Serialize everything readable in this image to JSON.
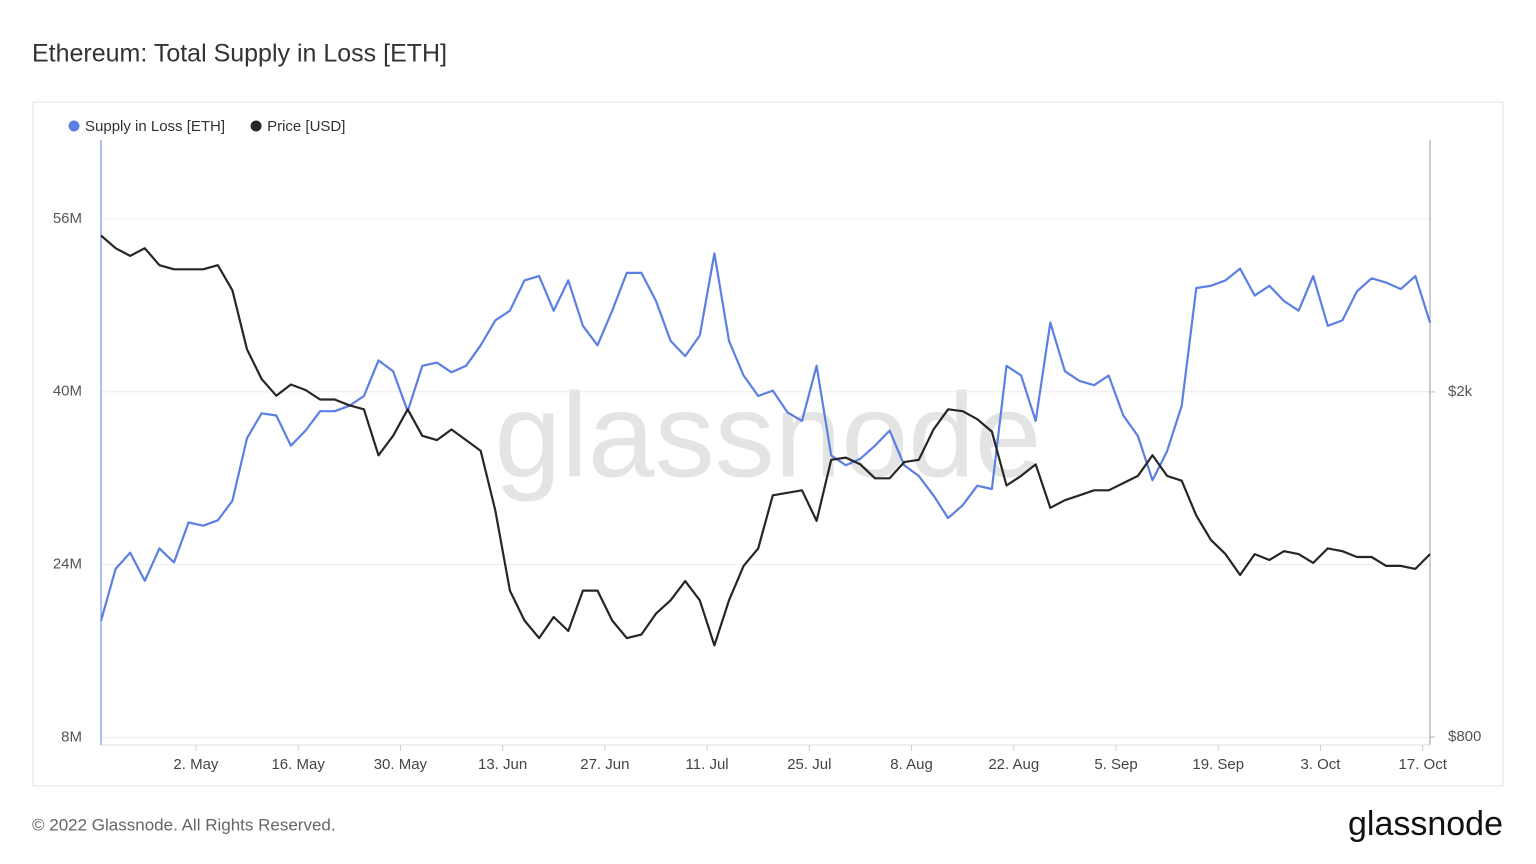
{
  "chart_data": {
    "type": "line",
    "title": "Ethereum: Total Supply in Loss [ETH]",
    "copyright": "© 2022 Glassnode. All Rights Reserved.",
    "watermark": "glassnode",
    "logo": "glassnode",
    "x": [
      "04-19",
      "04-21",
      "04-23",
      "04-25",
      "04-27",
      "04-29",
      "05-01",
      "05-03",
      "05-05",
      "05-07",
      "05-09",
      "05-11",
      "05-13",
      "05-15",
      "05-17",
      "05-19",
      "05-21",
      "05-23",
      "05-25",
      "05-27",
      "05-29",
      "05-31",
      "06-02",
      "06-04",
      "06-06",
      "06-08",
      "06-10",
      "06-12",
      "06-14",
      "06-16",
      "06-18",
      "06-20",
      "06-22",
      "06-24",
      "06-26",
      "06-28",
      "06-30",
      "07-02",
      "07-04",
      "07-06",
      "07-08",
      "07-10",
      "07-12",
      "07-14",
      "07-16",
      "07-18",
      "07-20",
      "07-22",
      "07-24",
      "07-26",
      "07-28",
      "07-30",
      "08-01",
      "08-03",
      "08-05",
      "08-07",
      "08-09",
      "08-11",
      "08-13",
      "08-15",
      "08-17",
      "08-19",
      "08-21",
      "08-23",
      "08-25",
      "08-27",
      "08-29",
      "08-31",
      "09-02",
      "09-04",
      "09-06",
      "09-08",
      "09-10",
      "09-12",
      "09-14",
      "09-16",
      "09-18",
      "09-20",
      "09-22",
      "09-24",
      "09-26",
      "09-28",
      "09-30",
      "10-02",
      "10-04",
      "10-06",
      "10-08",
      "10-10",
      "10-12",
      "10-14",
      "10-16",
      "10-18"
    ],
    "xlim": [
      "04-19",
      "10-18"
    ],
    "xticks": [
      {
        "value": "05-02",
        "label": "2. May"
      },
      {
        "value": "05-16",
        "label": "16. May"
      },
      {
        "value": "05-30",
        "label": "30. May"
      },
      {
        "value": "06-13",
        "label": "13. Jun"
      },
      {
        "value": "06-27",
        "label": "27. Jun"
      },
      {
        "value": "07-11",
        "label": "11. Jul"
      },
      {
        "value": "07-25",
        "label": "25. Jul"
      },
      {
        "value": "08-08",
        "label": "8. Aug"
      },
      {
        "value": "08-22",
        "label": "22. Aug"
      },
      {
        "value": "09-05",
        "label": "5. Sep"
      },
      {
        "value": "09-19",
        "label": "19. Sep"
      },
      {
        "value": "10-03",
        "label": "3. Oct"
      },
      {
        "value": "10-17",
        "label": "17. Oct"
      }
    ],
    "ylim": [
      7300000,
      63300000
    ],
    "yticks": [
      {
        "value": 8000000,
        "label": "8M"
      },
      {
        "value": 24000000,
        "label": "24M"
      },
      {
        "value": 40000000,
        "label": "40M"
      },
      {
        "value": 56000000,
        "label": "56M"
      }
    ],
    "y2lim": [
      783,
      3905
    ],
    "y2log": true,
    "y2ticks": [
      {
        "value": 800,
        "label": "$800"
      },
      {
        "value": 2000,
        "label": "$2k"
      }
    ],
    "grid": true,
    "legend": "top-left",
    "series": [
      {
        "name": "Supply in Loss [ETH]",
        "color": "#5b7fe3",
        "values": [
          18800000,
          23600000,
          25100000,
          22500000,
          25500000,
          24200000,
          27900000,
          27600000,
          28100000,
          29900000,
          35700000,
          38000000,
          37800000,
          35000000,
          36400000,
          38200000,
          38200000,
          38700000,
          39600000,
          42900000,
          41900000,
          38200000,
          42400000,
          42700000,
          41800000,
          42400000,
          44300000,
          46600000,
          47500000,
          50300000,
          50700000,
          47500000,
          50300000,
          46100000,
          44300000,
          47500000,
          51000000,
          51000000,
          48400000,
          44700000,
          43300000,
          45200000,
          52800000,
          44700000,
          41500000,
          39600000,
          40100000,
          38100000,
          37300000,
          42400000,
          34100000,
          33200000,
          33800000,
          35000000,
          36400000,
          33200000,
          32200000,
          30400000,
          28300000,
          29500000,
          31300000,
          31000000,
          42400000,
          41500000,
          37300000,
          46400000,
          41900000,
          41000000,
          40600000,
          41500000,
          37800000,
          35900000,
          31800000,
          34500000,
          38700000,
          49600000,
          49800000,
          50300000,
          51400000,
          48900000,
          49800000,
          48400000,
          47500000,
          50700000,
          46100000,
          46600000,
          49300000,
          50500000,
          50100000,
          49500000,
          50700000,
          46400000
        ]
      },
      {
        "name": "Price [USD]",
        "color": "#262626",
        "axis": "y2",
        "values": [
          3030,
          2930,
          2870,
          2930,
          2800,
          2770,
          2770,
          2770,
          2800,
          2620,
          2240,
          2070,
          1980,
          2040,
          2010,
          1960,
          1960,
          1930,
          1910,
          1690,
          1780,
          1910,
          1780,
          1760,
          1810,
          1760,
          1710,
          1460,
          1180,
          1090,
          1040,
          1100,
          1060,
          1180,
          1180,
          1090,
          1040,
          1050,
          1110,
          1150,
          1210,
          1150,
          1020,
          1150,
          1260,
          1320,
          1520,
          1530,
          1540,
          1420,
          1670,
          1680,
          1650,
          1590,
          1590,
          1660,
          1670,
          1810,
          1910,
          1900,
          1860,
          1800,
          1560,
          1600,
          1650,
          1470,
          1500,
          1520,
          1540,
          1540,
          1570,
          1600,
          1690,
          1600,
          1580,
          1440,
          1350,
          1300,
          1230,
          1300,
          1280,
          1310,
          1300,
          1270,
          1320,
          1310,
          1290,
          1290,
          1260,
          1260,
          1250,
          1300
        ]
      }
    ]
  }
}
